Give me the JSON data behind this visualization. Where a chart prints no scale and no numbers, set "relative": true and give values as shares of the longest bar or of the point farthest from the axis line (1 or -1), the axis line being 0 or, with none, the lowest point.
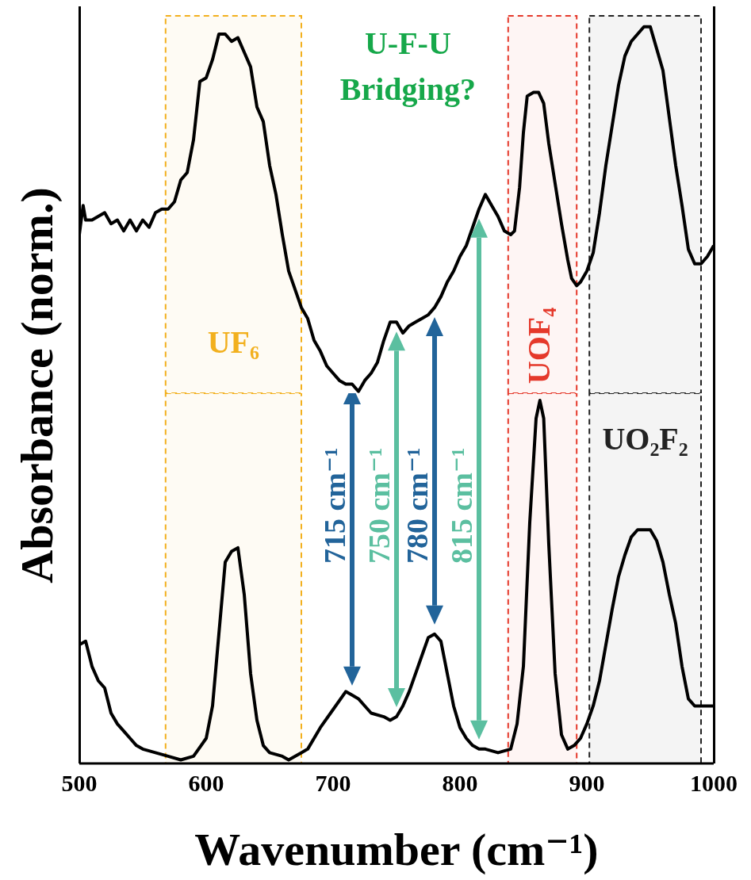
{
  "chart_data": [
    {
      "type": "line",
      "relative": true,
      "xlim": [
        500,
        1000
      ],
      "tick_labels": false,
      "marker": "none",
      "line_style": "solid",
      "ylabel": "Absorbance (norm.)",
      "x": [
        500,
        503,
        505,
        510,
        520,
        525,
        530,
        535,
        540,
        545,
        550,
        555,
        560,
        565,
        570,
        575,
        580,
        585,
        590,
        595,
        600,
        605,
        610,
        615,
        620,
        625,
        630,
        635,
        640,
        645,
        650,
        655,
        660,
        665,
        670,
        675,
        680,
        685,
        690,
        695,
        700,
        705,
        710,
        715,
        720,
        725,
        730,
        735,
        740,
        745,
        750,
        755,
        760,
        765,
        770,
        775,
        780,
        785,
        790,
        795,
        800,
        805,
        810,
        815,
        820,
        825,
        830,
        835,
        840,
        843,
        847,
        850,
        853,
        858,
        862,
        866,
        870,
        875,
        880,
        885,
        888,
        892,
        895,
        900,
        905,
        910,
        915,
        920,
        925,
        930,
        935,
        940,
        945,
        950,
        955,
        960,
        965,
        970,
        975,
        980,
        985,
        990,
        995,
        1000
      ],
      "series": [
        {
          "color": "#000000",
          "values": [
            0.43,
            0.51,
            0.47,
            0.47,
            0.49,
            0.46,
            0.47,
            0.44,
            0.47,
            0.44,
            0.47,
            0.45,
            0.49,
            0.5,
            0.5,
            0.52,
            0.58,
            0.6,
            0.69,
            0.85,
            0.86,
            0.91,
            0.98,
            0.98,
            0.96,
            0.97,
            0.93,
            0.89,
            0.78,
            0.74,
            0.62,
            0.54,
            0.43,
            0.33,
            0.28,
            0.23,
            0.2,
            0.14,
            0.11,
            0.07,
            0.05,
            0.03,
            0.02,
            0.02,
            0,
            0.03,
            0.05,
            0.08,
            0.14,
            0.19,
            0.19,
            0.16,
            0.18,
            0.19,
            0.2,
            0.21,
            0.23,
            0.26,
            0.3,
            0.33,
            0.37,
            0.4,
            0.45,
            0.5,
            0.54,
            0.51,
            0.48,
            0.44,
            0.43,
            0.44,
            0.56,
            0.71,
            0.81,
            0.82,
            0.82,
            0.79,
            0.68,
            0.57,
            0.46,
            0.36,
            0.31,
            0.29,
            0.3,
            0.33,
            0.38,
            0.49,
            0.62,
            0.73,
            0.84,
            0.92,
            0.96,
            0.98,
            1,
            1,
            0.94,
            0.88,
            0.75,
            0.62,
            0.51,
            0.39,
            0.35,
            0.35,
            0.37,
            0.4
          ]
        }
      ],
      "bands": [
        {
          "axis": "x",
          "from": 568,
          "to": 675,
          "label": "UF₆",
          "color": "#f2b01e"
        },
        {
          "axis": "x",
          "from": 838,
          "to": 892,
          "label": "UOF₄",
          "color": "#e5392b"
        },
        {
          "axis": "x",
          "from": 902,
          "to": 990,
          "color": "#222222"
        }
      ],
      "ref_lines": [
        {
          "axis": "x",
          "value": 750,
          "color": "#5bbfa0"
        },
        {
          "axis": "x",
          "value": 780,
          "color": "#22649a"
        },
        {
          "axis": "x",
          "value": 815,
          "color": "#5bbfa0"
        }
      ],
      "annotations": [
        "U-F-U Bridging?"
      ]
    },
    {
      "type": "line",
      "relative": true,
      "xlim": [
        500,
        1000
      ],
      "xticks": [
        500,
        600,
        700,
        800,
        900,
        1000
      ],
      "marker": "none",
      "line_style": "solid",
      "xlabel": "Wavenumber (cm⁻¹)",
      "x": [
        500,
        505,
        510,
        515,
        520,
        525,
        530,
        535,
        540,
        545,
        550,
        560,
        570,
        580,
        590,
        600,
        605,
        610,
        615,
        620,
        625,
        630,
        635,
        640,
        645,
        650,
        660,
        665,
        670,
        675,
        680,
        690,
        700,
        710,
        715,
        720,
        725,
        730,
        740,
        745,
        750,
        755,
        760,
        770,
        775,
        780,
        785,
        790,
        795,
        800,
        805,
        810,
        815,
        820,
        830,
        840,
        845,
        850,
        855,
        860,
        863,
        866,
        870,
        875,
        880,
        885,
        890,
        895,
        900,
        905,
        910,
        915,
        920,
        925,
        930,
        935,
        940,
        945,
        950,
        955,
        960,
        965,
        970,
        975,
        980,
        985,
        990,
        1000
      ],
      "series": [
        {
          "color": "#000000",
          "values": [
            0.32,
            0.33,
            0.26,
            0.22,
            0.2,
            0.13,
            0.1,
            0.08,
            0.06,
            0.04,
            0.03,
            0.02,
            0.01,
            0,
            0.01,
            0.06,
            0.15,
            0.35,
            0.55,
            0.58,
            0.59,
            0.46,
            0.24,
            0.11,
            0.04,
            0.02,
            0.01,
            0,
            0.01,
            0.02,
            0.03,
            0.09,
            0.14,
            0.19,
            0.18,
            0.17,
            0.15,
            0.13,
            0.12,
            0.11,
            0.12,
            0.15,
            0.19,
            0.29,
            0.34,
            0.35,
            0.33,
            0.24,
            0.15,
            0.09,
            0.06,
            0.04,
            0.03,
            0.03,
            0.02,
            0.03,
            0.1,
            0.26,
            0.66,
            0.95,
            1,
            0.95,
            0.6,
            0.24,
            0.07,
            0.03,
            0.04,
            0.06,
            0.1,
            0.15,
            0.22,
            0.32,
            0.42,
            0.51,
            0.57,
            0.62,
            0.64,
            0.64,
            0.64,
            0.61,
            0.55,
            0.46,
            0.38,
            0.26,
            0.17,
            0.15,
            0.15,
            0.15
          ]
        }
      ],
      "bands": [
        {
          "axis": "x",
          "from": 568,
          "to": 675,
          "color": "#f2b01e"
        },
        {
          "axis": "x",
          "from": 838,
          "to": 892,
          "color": "#e5392b"
        },
        {
          "axis": "x",
          "from": 902,
          "to": 990,
          "label": "UO₂F₂",
          "color": "#222222"
        }
      ],
      "ref_lines": [
        {
          "axis": "x",
          "value": 715,
          "label": "715 cm⁻¹",
          "color": "#22649a"
        },
        {
          "axis": "x",
          "value": 750,
          "label": "750 cm⁻¹",
          "color": "#5bbfa0"
        },
        {
          "axis": "x",
          "value": 780,
          "label": "780 cm⁻¹",
          "color": "#22649a"
        },
        {
          "axis": "x",
          "value": 815,
          "label": "815 cm⁻¹",
          "color": "#5bbfa0"
        }
      ]
    }
  ]
}
